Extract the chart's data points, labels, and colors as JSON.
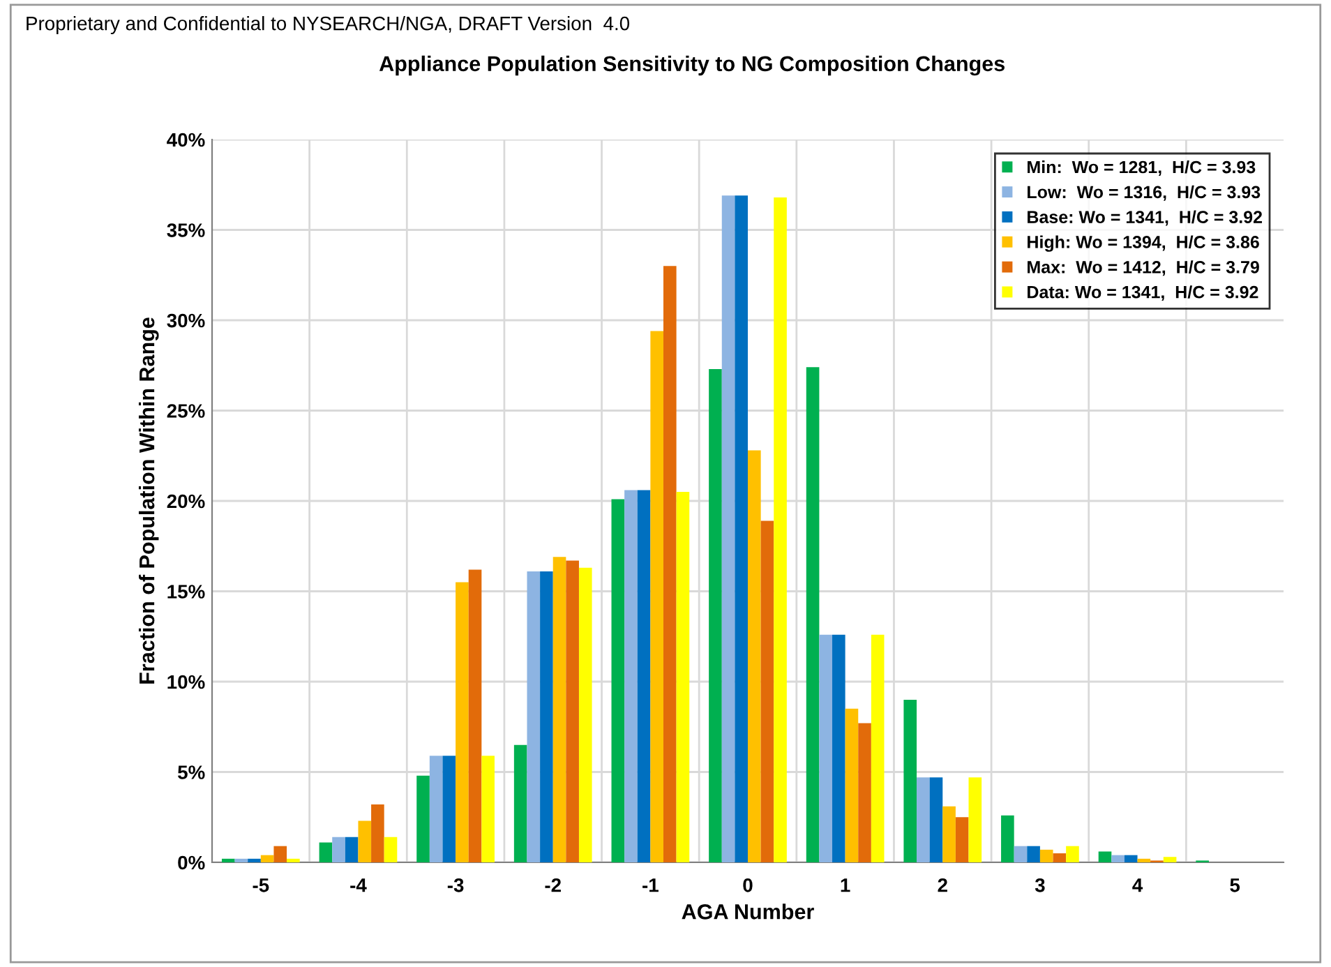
{
  "chart_data": {
    "type": "bar",
    "title": "Appliance Population Sensitivity to NG Composition Changes",
    "xlabel": "AGA Number",
    "ylabel": "Fraction of Population Within Range",
    "annotations": [
      "Proprietary and Confidential to NYSEARCH/NGA, DRAFT Version  4.0"
    ],
    "categories": [
      "-5",
      "-4",
      "-3",
      "-2",
      "-1",
      "0",
      "1",
      "2",
      "3",
      "4",
      "5"
    ],
    "series": [
      {
        "name": "Min:  Wo = 1281,  H/C = 3.93",
        "color": "#00b050",
        "values": [
          0.2,
          1.1,
          4.8,
          6.5,
          20.1,
          27.3,
          27.4,
          9.0,
          2.6,
          0.6,
          0.1
        ]
      },
      {
        "name": "Low:  Wo = 1316,  H/C = 3.93",
        "color": "#8db4e2",
        "values": [
          0.2,
          1.4,
          5.9,
          16.1,
          20.6,
          36.9,
          12.6,
          4.7,
          0.9,
          0.4,
          0
        ]
      },
      {
        "name": "Base: Wo = 1341,  H/C = 3.92",
        "color": "#0070c0",
        "values": [
          0.2,
          1.4,
          5.9,
          16.1,
          20.6,
          36.9,
          12.6,
          4.7,
          0.9,
          0.4,
          0
        ]
      },
      {
        "name": "High: Wo = 1394,  H/C = 3.86",
        "color": "#ffc000",
        "values": [
          0.4,
          2.3,
          15.5,
          16.9,
          29.4,
          22.8,
          8.5,
          3.1,
          0.7,
          0.2,
          0
        ]
      },
      {
        "name": "Max:  Wo = 1412,  H/C = 3.79",
        "color": "#e26b0a",
        "values": [
          0.9,
          3.2,
          16.2,
          16.7,
          33.0,
          18.9,
          7.7,
          2.5,
          0.5,
          0.1,
          0
        ]
      },
      {
        "name": "Data: Wo = 1341,  H/C = 3.92",
        "color": "#ffff00",
        "values": [
          0.2,
          1.4,
          5.9,
          16.3,
          20.5,
          36.8,
          12.6,
          4.7,
          0.9,
          0.3,
          0
        ]
      }
    ],
    "ylim": [
      0,
      40
    ],
    "yticks": [
      {
        "value": 0,
        "label": "0%"
      },
      {
        "value": 5,
        "label": "5%"
      },
      {
        "value": 10,
        "label": "10%"
      },
      {
        "value": 15,
        "label": "15%"
      },
      {
        "value": 20,
        "label": "20%"
      },
      {
        "value": 25,
        "label": "25%"
      },
      {
        "value": 30,
        "label": "30%"
      },
      {
        "value": 35,
        "label": "35%"
      },
      {
        "value": 40,
        "label": "40%"
      }
    ],
    "grid": true,
    "legend": "top right"
  }
}
